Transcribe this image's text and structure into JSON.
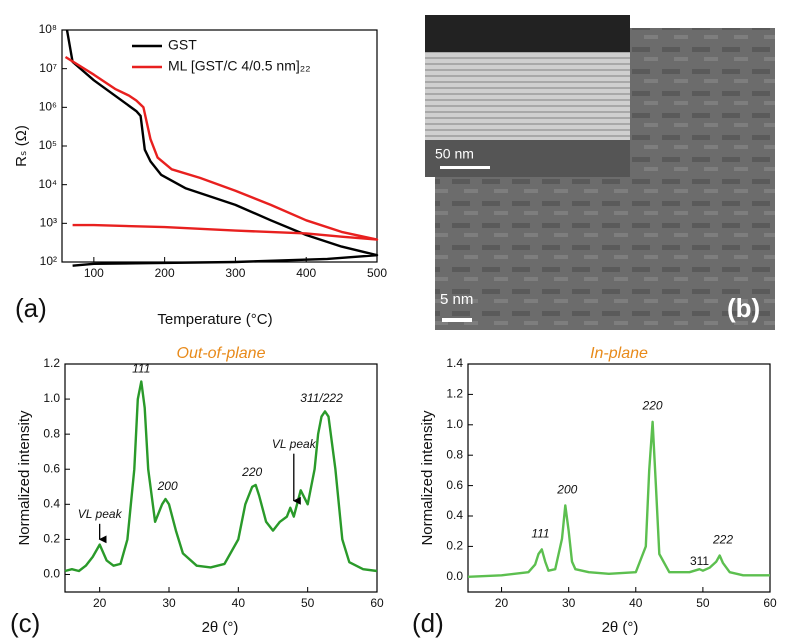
{
  "chart_data": [
    {
      "type": "line",
      "panel_label": "(a)",
      "xlabel": "Temperature (°C)",
      "ylabel": "Rₛ (Ω)",
      "log_y": true,
      "legend": "upper center",
      "xlim": [
        55,
        500
      ],
      "xticks": [
        100,
        200,
        300,
        400,
        500
      ],
      "ylim": [
        100,
        100000000
      ],
      "yticks": [
        {
          "value": 100,
          "label": "10²"
        },
        {
          "value": 1000,
          "label": "10³"
        },
        {
          "value": 10000,
          "label": "10⁴"
        },
        {
          "value": 100000,
          "label": "10⁵"
        },
        {
          "value": 1000000,
          "label": "10⁶"
        },
        {
          "value": 10000000,
          "label": "10⁷"
        },
        {
          "value": 100000000,
          "label": "10⁸"
        }
      ],
      "series": [
        {
          "name": "GST",
          "color": "#000000",
          "x": [
            62,
            70,
            100,
            130,
            160,
            166,
            172,
            180,
            195,
            230,
            300,
            350,
            400,
            450,
            500,
            430,
            300,
            200,
            100,
            70
          ],
          "values": [
            100000000,
            15000000,
            5000000,
            2000000,
            800000,
            600000,
            80000,
            40000,
            18000,
            8000,
            3000,
            1200,
            500,
            250,
            150,
            120,
            100,
            95,
            90,
            80
          ]
        },
        {
          "name": "ML [GST/C 4/0.5 nm]₂₂",
          "color": "#e8201f",
          "x": [
            60,
            100,
            130,
            150,
            160,
            170,
            180,
            190,
            210,
            250,
            300,
            350,
            400,
            450,
            500,
            450,
            400,
            300,
            200,
            100,
            70
          ],
          "values": [
            20000000,
            7000000,
            3000000,
            2000000,
            1500000,
            1000000,
            150000,
            50000,
            25000,
            15000,
            7000,
            3000,
            1200,
            600,
            380,
            450,
            550,
            650,
            800,
            900,
            900
          ]
        }
      ]
    },
    {
      "type": "line",
      "panel_label": "(c)",
      "title": "Out-of-plane",
      "xlabel": "2θ (°)",
      "ylabel": "Normalized intensity",
      "xlim": [
        15,
        60
      ],
      "xticks": [
        20,
        30,
        40,
        50,
        60
      ],
      "ylim": [
        -0.1,
        1.2
      ],
      "yticks": [
        {
          "value": 0,
          "label": "0.0"
        },
        0.2,
        0.4,
        0.6,
        0.8,
        {
          "value": 1,
          "label": "1.0"
        },
        1.2
      ],
      "series": [
        {
          "color": "#2a9a2a",
          "x": [
            15,
            16,
            17,
            18,
            19,
            20,
            21,
            22,
            23,
            24,
            25,
            25.5,
            26,
            26.5,
            27,
            28,
            29,
            29.5,
            30,
            31,
            32,
            34,
            36,
            38,
            40,
            41,
            42,
            42.5,
            43,
            44,
            45,
            46,
            47,
            47.5,
            48,
            49,
            50,
            51,
            51.5,
            52,
            52.5,
            53,
            54,
            55,
            56,
            58,
            60
          ],
          "values": [
            0.02,
            0.03,
            0.02,
            0.05,
            0.1,
            0.17,
            0.08,
            0.05,
            0.06,
            0.2,
            0.6,
            1.0,
            1.1,
            0.95,
            0.6,
            0.3,
            0.4,
            0.43,
            0.4,
            0.25,
            0.12,
            0.05,
            0.04,
            0.06,
            0.2,
            0.4,
            0.5,
            0.51,
            0.45,
            0.3,
            0.25,
            0.3,
            0.33,
            0.38,
            0.33,
            0.48,
            0.4,
            0.6,
            0.8,
            0.9,
            0.93,
            0.9,
            0.6,
            0.2,
            0.07,
            0.03,
            0.02
          ]
        }
      ],
      "annotations": [
        {
          "text": "111",
          "x": 26,
          "y": 1.17
        },
        {
          "text": "200",
          "x": 29.8,
          "y": 0.5
        },
        {
          "text": "220",
          "x": 42,
          "y": 0.58
        },
        {
          "text": "311/222",
          "x": 52,
          "y": 1.0
        },
        {
          "text": "VL peak",
          "x": 20,
          "y": 0.34,
          "arrow_y": 0.2
        },
        {
          "text": "VL peak",
          "x": 48,
          "y": 0.74,
          "arrow_y": 0.42
        }
      ]
    },
    {
      "type": "line",
      "panel_label": "(d)",
      "title": "In-plane",
      "xlabel": "2θ (°)",
      "ylabel": "Normalized intensity",
      "xlim": [
        15,
        60
      ],
      "xticks": [
        20,
        30,
        40,
        50,
        60
      ],
      "ylim": [
        -0.1,
        1.4
      ],
      "yticks": [
        {
          "value": 0,
          "label": "0.0"
        },
        0.2,
        0.4,
        0.6,
        0.8,
        {
          "value": 1,
          "label": "1.0"
        },
        1.2,
        1.4
      ],
      "series": [
        {
          "color": "#5cbf4f",
          "x": [
            15,
            20,
            24,
            25,
            25.5,
            26,
            26.5,
            27,
            28,
            29,
            29.5,
            30,
            30.5,
            31,
            33,
            36,
            40,
            41.5,
            42,
            42.5,
            43,
            43.5,
            45,
            48,
            49.5,
            50,
            51,
            52,
            52.5,
            53,
            54,
            56,
            60
          ],
          "values": [
            0,
            0.01,
            0.03,
            0.08,
            0.15,
            0.18,
            0.1,
            0.04,
            0.05,
            0.25,
            0.47,
            0.3,
            0.1,
            0.05,
            0.03,
            0.02,
            0.03,
            0.2,
            0.7,
            1.02,
            0.6,
            0.15,
            0.03,
            0.03,
            0.05,
            0.04,
            0.06,
            0.1,
            0.14,
            0.09,
            0.03,
            0.01,
            0.01
          ]
        }
      ],
      "annotations": [
        {
          "text": "111",
          "x": 25.8,
          "y": 0.28
        },
        {
          "text": "200",
          "x": 29.8,
          "y": 0.57
        },
        {
          "text": "220",
          "x": 42.5,
          "y": 1.12
        },
        {
          "text": "311",
          "x": 49.5,
          "y": 0.1,
          "italic": false
        },
        {
          "text": "222",
          "x": 53,
          "y": 0.24
        }
      ]
    }
  ],
  "image_panel": {
    "panel_label": "(b)",
    "inset_scale_bar": "50 nm",
    "scale_bar": "5 nm"
  }
}
